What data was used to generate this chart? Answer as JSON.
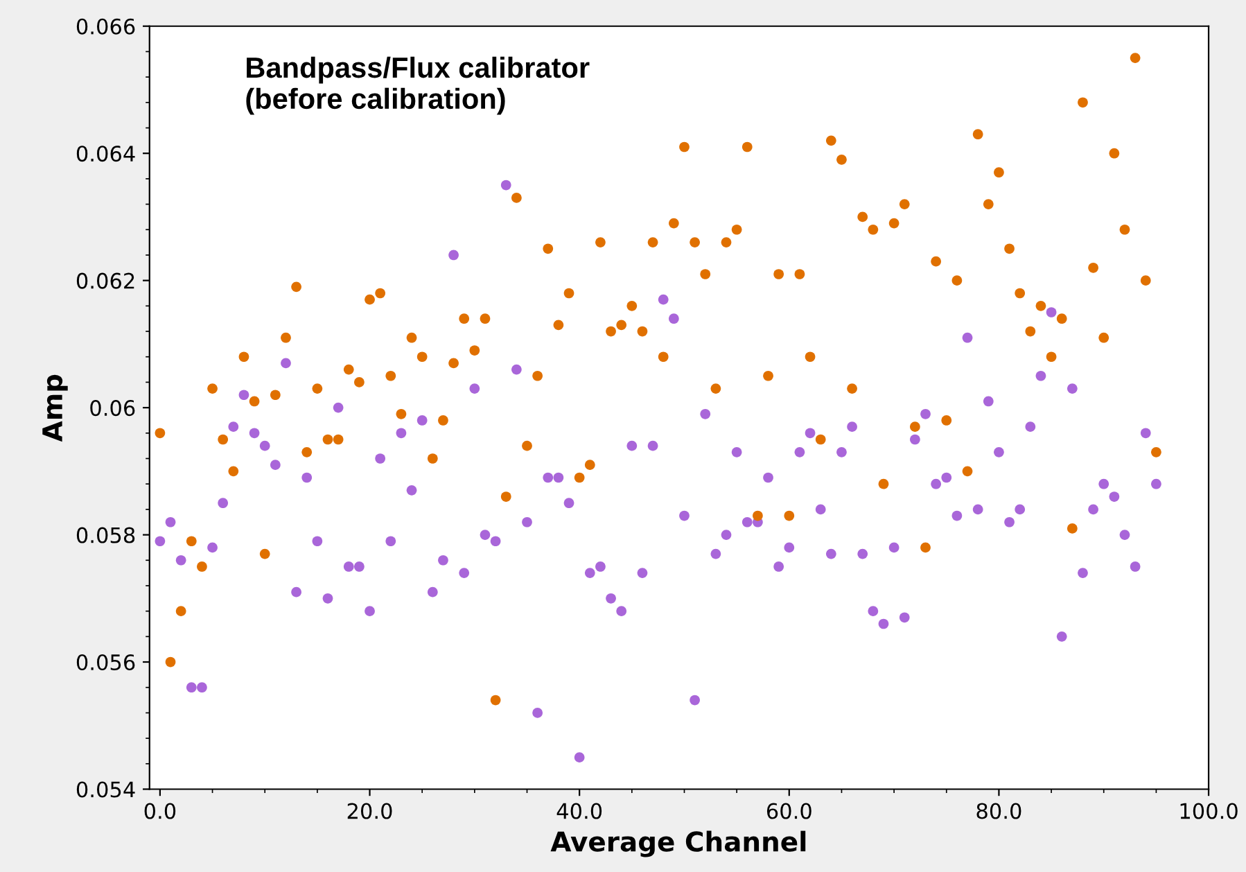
{
  "chart_data": {
    "type": "scatter",
    "title": "Bandpass/Flux calibrator\n(before calibration)",
    "xlabel": "Average Channel",
    "ylabel": "Amp",
    "marker": "circle",
    "grid": false,
    "x": [
      0,
      1,
      2,
      3,
      4,
      5,
      6,
      7,
      8,
      9,
      10,
      11,
      12,
      13,
      14,
      15,
      16,
      17,
      18,
      19,
      20,
      21,
      22,
      23,
      24,
      25,
      26,
      27,
      28,
      29,
      30,
      31,
      32,
      33,
      34,
      35,
      36,
      37,
      38,
      39,
      40,
      41,
      42,
      43,
      44,
      45,
      46,
      47,
      48,
      49,
      50,
      51,
      52,
      53,
      54,
      55,
      56,
      57,
      58,
      59,
      60,
      61,
      62,
      63,
      64,
      65,
      66,
      67,
      68,
      69,
      70,
      71,
      72,
      73,
      74,
      75,
      76,
      77,
      78,
      79,
      80,
      81,
      82,
      83,
      84,
      85,
      86,
      87,
      88,
      89,
      90,
      91,
      92,
      93,
      94,
      95
    ],
    "series": [
      {
        "color": "#e07000",
        "values": [
          0.0596,
          0.056,
          0.0568,
          0.0579,
          0.0575,
          0.0603,
          0.0595,
          0.059,
          0.0608,
          0.0601,
          0.0577,
          0.0602,
          0.0611,
          0.0619,
          0.0593,
          0.0603,
          0.0595,
          0.0595,
          0.0606,
          0.0604,
          0.0617,
          0.0618,
          0.0605,
          0.0599,
          0.0611,
          0.0608,
          0.0592,
          0.0598,
          0.0607,
          0.0614,
          0.0609,
          0.0614,
          0.0554,
          0.0586,
          0.0633,
          0.0594,
          0.0605,
          0.0625,
          0.0613,
          0.0618,
          0.0589,
          0.0591,
          0.0626,
          0.0612,
          0.0613,
          0.0616,
          0.0612,
          0.0626,
          0.0608,
          0.0629,
          0.0641,
          0.0626,
          0.0621,
          0.0603,
          0.0626,
          0.0628,
          0.0641,
          0.0583,
          0.0605,
          0.0621,
          0.0583,
          0.0621,
          0.0608,
          0.0595,
          0.0642,
          0.0639,
          0.0603,
          0.063,
          0.0628,
          0.0588,
          0.0629,
          0.0632,
          0.0597,
          0.0578,
          0.0623,
          0.0598,
          0.062,
          0.059,
          0.0643,
          0.0632,
          0.0637,
          0.0625,
          0.0618,
          0.0612,
          0.0616,
          0.0608,
          0.0614,
          0.0581,
          0.0648,
          0.0622,
          0.0611,
          0.064,
          0.0628,
          0.0655,
          0.062,
          0.0593
        ]
      },
      {
        "color": "#a966d9",
        "values": [
          0.0579,
          0.0582,
          0.0576,
          0.0556,
          0.0556,
          0.0578,
          0.0585,
          0.0597,
          0.0602,
          0.0596,
          0.0594,
          0.0591,
          0.0607,
          0.0571,
          0.0589,
          0.0579,
          0.057,
          0.06,
          0.0575,
          0.0575,
          0.0568,
          0.0592,
          0.0579,
          0.0596,
          0.0587,
          0.0598,
          0.0571,
          0.0576,
          0.0624,
          0.0574,
          0.0603,
          0.058,
          0.0579,
          0.0635,
          0.0606,
          0.0582,
          0.0552,
          0.0589,
          0.0589,
          0.0585,
          0.0545,
          0.0574,
          0.0575,
          0.057,
          0.0568,
          0.0594,
          0.0574,
          0.0594,
          0.0617,
          0.0614,
          0.0583,
          0.0554,
          0.0599,
          0.0577,
          0.058,
          0.0593,
          0.0582,
          0.0582,
          0.0589,
          0.0575,
          0.0578,
          0.0593,
          0.0596,
          0.0584,
          0.0577,
          0.0593,
          0.0597,
          0.0577,
          0.0568,
          0.0566,
          0.0578,
          0.0567,
          0.0595,
          0.0599,
          0.0588,
          0.0589,
          0.0583,
          0.0611,
          0.0584,
          0.0601,
          0.0593,
          0.0582,
          0.0584,
          0.0597,
          0.0605,
          0.0615,
          0.0564,
          0.0603,
          0.0574,
          0.0584,
          0.0588,
          0.0586,
          0.058,
          0.0575,
          0.0596,
          0.0588
        ]
      }
    ],
    "xlim": [
      -1,
      100
    ],
    "xticks": [
      {
        "value": 0,
        "label": "0.0"
      },
      {
        "value": 20,
        "label": "20.0"
      },
      {
        "value": 40,
        "label": "40.0"
      },
      {
        "value": 60,
        "label": "60.0"
      },
      {
        "value": 80,
        "label": "80.0"
      },
      {
        "value": 100,
        "label": "100.0"
      }
    ],
    "ylim": [
      0.054,
      0.066
    ],
    "yticks": [
      0.054,
      0.056,
      0.058,
      0.06,
      0.062,
      0.064,
      0.066
    ]
  }
}
